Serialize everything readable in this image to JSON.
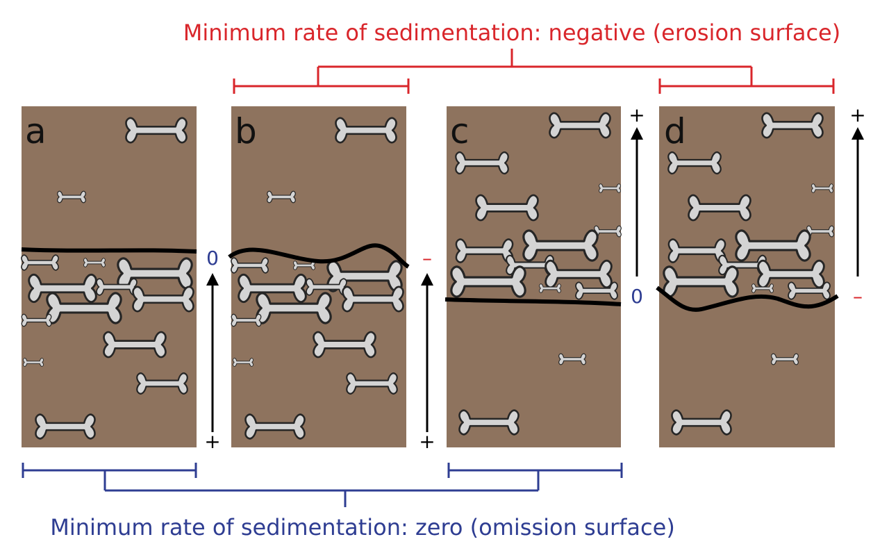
{
  "title_top": "Minimum rate of sedimentation: negative (erosion surface)",
  "title_bottom": "Minimum rate of sedimentation: zero (omission surface)",
  "colors": {
    "sediment": "#8e735e",
    "bone": "#d4d4d4",
    "bone_outline": "#262626",
    "surface_line": "#000000",
    "erosion": "#d9262b",
    "omission": "#2e3d92",
    "arrow": "#000000"
  },
  "panels": [
    {
      "letter": "a",
      "zero_label": "0",
      "bottom_sign": "+"
    },
    {
      "letter": "b",
      "minus_label": "–",
      "bottom_sign": "+"
    },
    {
      "letter": "c",
      "zero_label": "0",
      "top_sign": "+"
    },
    {
      "letter": "d",
      "minus_label": "–",
      "top_sign": "+"
    }
  ]
}
